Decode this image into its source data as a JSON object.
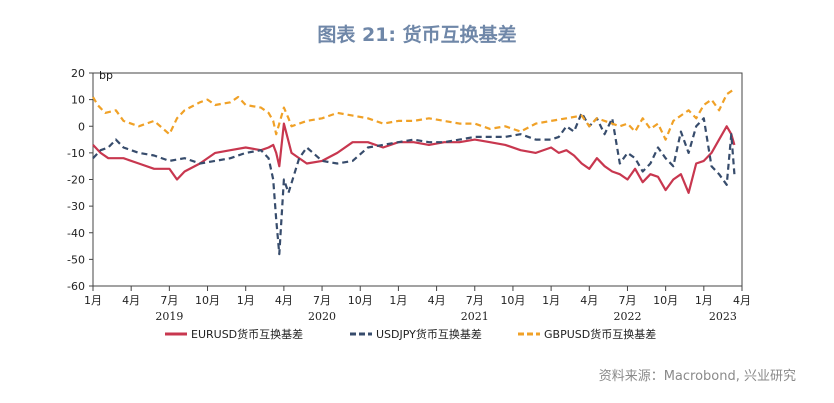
{
  "title": "图表 21: 货币互换基差",
  "source": "资料来源：Macrobond, 兴业研究",
  "chart_data": {
    "type": "line",
    "title": "图表 21: 货币互换基差",
    "ylabel": "bp",
    "ylim": [
      -60,
      20
    ],
    "yticks": [
      20,
      10,
      0,
      -10,
      -20,
      -30,
      -40,
      -50,
      -60
    ],
    "x_range": [
      2019.0,
      2023.25
    ],
    "x_ticks": [
      {
        "x": 2019.0,
        "label": "1月"
      },
      {
        "x": 2019.25,
        "label": "4月"
      },
      {
        "x": 2019.5,
        "label": "7月"
      },
      {
        "x": 2019.75,
        "label": "10月"
      },
      {
        "x": 2020.0,
        "label": "1月"
      },
      {
        "x": 2020.25,
        "label": "4月"
      },
      {
        "x": 2020.5,
        "label": "7月"
      },
      {
        "x": 2020.75,
        "label": "10月"
      },
      {
        "x": 2021.0,
        "label": "1月"
      },
      {
        "x": 2021.25,
        "label": "4月"
      },
      {
        "x": 2021.5,
        "label": "7月"
      },
      {
        "x": 2021.75,
        "label": "10月"
      },
      {
        "x": 2022.0,
        "label": "1月"
      },
      {
        "x": 2022.25,
        "label": "4月"
      },
      {
        "x": 2022.5,
        "label": "7月"
      },
      {
        "x": 2022.75,
        "label": "10月"
      },
      {
        "x": 2023.0,
        "label": "1月"
      },
      {
        "x": 2023.25,
        "label": "4月"
      }
    ],
    "year_labels": [
      {
        "x": 2019.5,
        "label": "2019"
      },
      {
        "x": 2020.5,
        "label": "2020"
      },
      {
        "x": 2021.5,
        "label": "2021"
      },
      {
        "x": 2022.5,
        "label": "2022"
      },
      {
        "x": 2023.125,
        "label": "2023"
      }
    ],
    "series": [
      {
        "name": "EURUSD货币互换基差",
        "color": "#c8374f",
        "dash": "solid",
        "x": [
          2019.0,
          2019.05,
          2019.1,
          2019.2,
          2019.3,
          2019.4,
          2019.5,
          2019.55,
          2019.6,
          2019.7,
          2019.8,
          2019.9,
          2020.0,
          2020.1,
          2020.15,
          2020.18,
          2020.2,
          2020.22,
          2020.25,
          2020.3,
          2020.4,
          2020.5,
          2020.6,
          2020.7,
          2020.8,
          2020.9,
          2021.0,
          2021.1,
          2021.2,
          2021.3,
          2021.4,
          2021.5,
          2021.6,
          2021.7,
          2021.8,
          2021.9,
          2022.0,
          2022.05,
          2022.1,
          2022.15,
          2022.2,
          2022.25,
          2022.3,
          2022.35,
          2022.4,
          2022.45,
          2022.5,
          2022.55,
          2022.6,
          2022.65,
          2022.7,
          2022.75,
          2022.8,
          2022.85,
          2022.9,
          2022.95,
          2023.0,
          2023.05,
          2023.1,
          2023.15,
          2023.18,
          2023.2
        ],
        "values": [
          -7,
          -10,
          -12,
          -12,
          -14,
          -16,
          -16,
          -20,
          -17,
          -14,
          -10,
          -9,
          -8,
          -9,
          -8,
          -7,
          -10,
          -15,
          1,
          -10,
          -14,
          -13,
          -10,
          -6,
          -6,
          -8,
          -6,
          -6,
          -7,
          -6,
          -6,
          -5,
          -6,
          -7,
          -9,
          -10,
          -8,
          -10,
          -9,
          -11,
          -14,
          -16,
          -12,
          -15,
          -17,
          -18,
          -20,
          -16,
          -21,
          -18,
          -19,
          -24,
          -20,
          -18,
          -25,
          -14,
          -13,
          -10,
          -5,
          0,
          -3,
          -7
        ]
      },
      {
        "name": "USDJPY货币互换基差",
        "color": "#374c6c",
        "dash": "dash",
        "x": [
          2019.0,
          2019.05,
          2019.1,
          2019.15,
          2019.2,
          2019.3,
          2019.4,
          2019.5,
          2019.6,
          2019.7,
          2019.8,
          2019.9,
          2020.0,
          2020.1,
          2020.15,
          2020.18,
          2020.2,
          2020.22,
          2020.25,
          2020.28,
          2020.35,
          2020.4,
          2020.5,
          2020.6,
          2020.7,
          2020.8,
          2020.9,
          2021.0,
          2021.1,
          2021.2,
          2021.3,
          2021.4,
          2021.5,
          2021.6,
          2021.7,
          2021.8,
          2021.9,
          2022.0,
          2022.05,
          2022.1,
          2022.15,
          2022.2,
          2022.25,
          2022.3,
          2022.35,
          2022.4,
          2022.45,
          2022.5,
          2022.55,
          2022.6,
          2022.65,
          2022.7,
          2022.75,
          2022.8,
          2022.85,
          2022.9,
          2022.95,
          2023.0,
          2023.05,
          2023.1,
          2023.15,
          2023.18,
          2023.2
        ],
        "values": [
          -12,
          -9,
          -8,
          -5,
          -8,
          -10,
          -11,
          -13,
          -12,
          -14,
          -13,
          -12,
          -10,
          -9,
          -12,
          -20,
          -35,
          -48,
          -20,
          -25,
          -12,
          -8,
          -13,
          -14,
          -13,
          -8,
          -7,
          -6,
          -5,
          -6,
          -6,
          -5,
          -4,
          -4,
          -4,
          -3,
          -5,
          -5,
          -4,
          0,
          -2,
          5,
          0,
          3,
          -3,
          3,
          -14,
          -10,
          -12,
          -17,
          -14,
          -8,
          -12,
          -15,
          -2,
          -10,
          0,
          3,
          -15,
          -18,
          -22,
          -3,
          -18
        ]
      },
      {
        "name": "GBPUSD货币互换基差",
        "color": "#f0a127",
        "dash": "dash",
        "x": [
          2019.0,
          2019.03,
          2019.08,
          2019.15,
          2019.2,
          2019.3,
          2019.4,
          2019.5,
          2019.55,
          2019.6,
          2019.7,
          2019.75,
          2019.8,
          2019.9,
          2019.95,
          2020.0,
          2020.1,
          2020.15,
          2020.18,
          2020.2,
          2020.25,
          2020.28,
          2020.3,
          2020.4,
          2020.5,
          2020.6,
          2020.7,
          2020.8,
          2020.9,
          2021.0,
          2021.1,
          2021.2,
          2021.3,
          2021.4,
          2021.5,
          2021.6,
          2021.7,
          2021.8,
          2021.9,
          2022.0,
          2022.1,
          2022.2,
          2022.25,
          2022.3,
          2022.35,
          2022.4,
          2022.45,
          2022.5,
          2022.55,
          2022.6,
          2022.65,
          2022.7,
          2022.75,
          2022.8,
          2022.85,
          2022.9,
          2022.95,
          2023.0,
          2023.05,
          2023.1,
          2023.15,
          2023.2
        ],
        "values": [
          11,
          8,
          5,
          6,
          2,
          0,
          2,
          -3,
          3,
          6,
          9,
          10,
          8,
          9,
          11,
          8,
          7,
          5,
          2,
          -3,
          7,
          3,
          0,
          2,
          3,
          5,
          4,
          3,
          1,
          2,
          2,
          3,
          2,
          1,
          1,
          -1,
          0,
          -2,
          1,
          2,
          3,
          4,
          0,
          3,
          2,
          1,
          0,
          1,
          -2,
          3,
          -1,
          1,
          -5,
          2,
          4,
          6,
          3,
          8,
          10,
          6,
          12,
          14
        ]
      }
    ]
  }
}
